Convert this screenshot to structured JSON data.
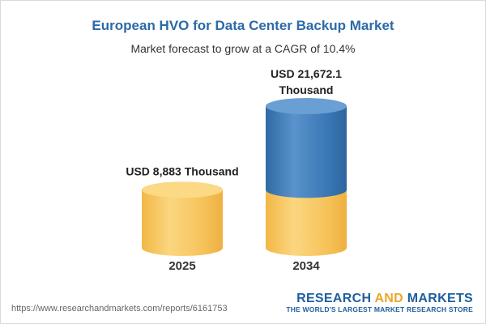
{
  "chart_data": {
    "type": "bar",
    "title": "European HVO for Data Center Backup Market",
    "subtitle": "Market forecast to grow at a CAGR of 10.4%",
    "categories": [
      "2025",
      "2034"
    ],
    "values": [
      8883,
      21672.1
    ],
    "value_labels": [
      "USD 8,883 Thousand",
      "USD 21,672.1 Thousand"
    ],
    "unit": "USD Thousand",
    "colors": {
      "base": "#f6c35a",
      "growth": "#3a78b6",
      "title": "#2c6aa8"
    }
  },
  "footer": {
    "url": "https://www.researchandmarkets.com/reports/6161753",
    "brand_part1": "RESEARCH ",
    "brand_part2": "AND",
    "brand_part3": " MARKETS",
    "tagline": "THE WORLD'S LARGEST MARKET RESEARCH STORE"
  }
}
